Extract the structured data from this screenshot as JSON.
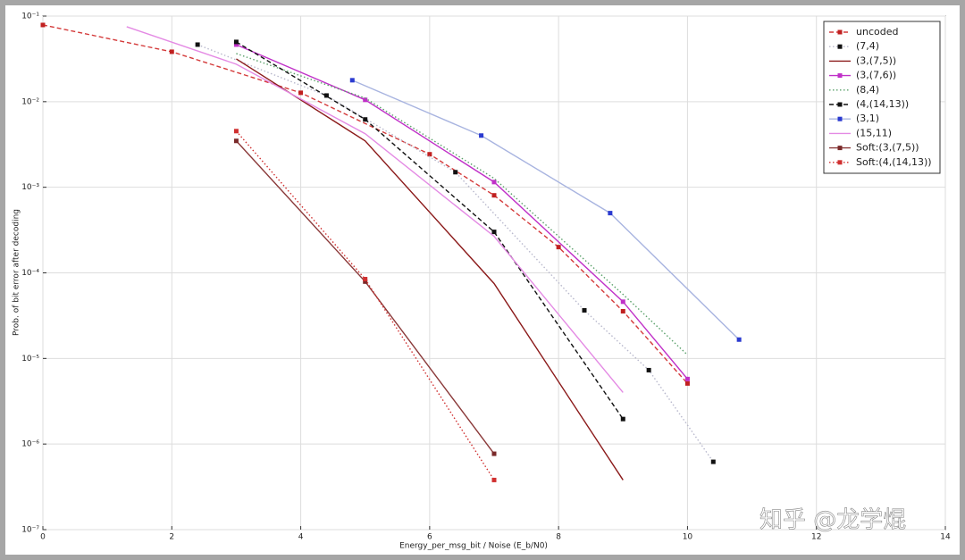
{
  "chart_data": {
    "type": "line",
    "xlabel": "Energy_per_msg_bit / Noise (E_b/N0)",
    "ylabel": "Prob. of bit error after decoding",
    "watermark": "知乎 @龙学焜",
    "xlim": [
      0,
      14
    ],
    "xticks": [
      0,
      2,
      4,
      6,
      8,
      10,
      12,
      14
    ],
    "ylim": [
      1e-07,
      0.1
    ],
    "log_y": true,
    "grid": true,
    "legend": "upper right",
    "yticks": [
      {
        "value": 0.1,
        "label": "10⁻¹"
      },
      {
        "value": 0.01,
        "label": "10⁻²"
      },
      {
        "value": 0.001,
        "label": "10⁻³"
      },
      {
        "value": 0.0001,
        "label": "10⁻⁴"
      },
      {
        "value": 1e-05,
        "label": "10⁻⁵"
      },
      {
        "value": 1e-06,
        "label": "10⁻⁶"
      },
      {
        "value": 1e-07,
        "label": "10⁻⁷"
      }
    ],
    "series": [
      {
        "name": "uncoded",
        "color": "#d43a3a",
        "marker_color": "#c02020",
        "dash": "dashed",
        "marker": true,
        "x": [
          0,
          2,
          4,
          6,
          7,
          8,
          9,
          10
        ],
        "values": [
          0.0787,
          0.0383,
          0.0127,
          0.00243,
          0.000805,
          0.0002,
          3.56e-05,
          5.1e-06
        ]
      },
      {
        "name": "(7,4)",
        "color": "#b8b8cc",
        "marker_color": "#111111",
        "dash": "dotted",
        "marker": true,
        "x": [
          2.4,
          4.4,
          6.4,
          8.4,
          9.4,
          10.4
        ],
        "values": [
          0.0464,
          0.0118,
          0.0015,
          3.65e-05,
          7.3e-06,
          6.2e-07
        ]
      },
      {
        "name": "(3,(7,5))",
        "color": "#8b1a1a",
        "marker_color": "#8b1a1a",
        "dash": "solid",
        "marker": false,
        "x": [
          3,
          5,
          7,
          9
        ],
        "values": [
          0.0316,
          0.00348,
          7.5e-05,
          3.8e-07
        ]
      },
      {
        "name": "(3,(7,6))",
        "color": "#c030c8",
        "marker_color": "#c030c8",
        "dash": "solid",
        "marker": true,
        "x": [
          3,
          5,
          7,
          9,
          10
        ],
        "values": [
          0.0464,
          0.0105,
          0.00115,
          4.6e-05,
          5.75e-06
        ]
      },
      {
        "name": "(8,4)",
        "color": "#5aa06a",
        "marker_color": "#5aa06a",
        "dash": "dotted",
        "marker": false,
        "x": [
          3,
          5,
          7,
          9,
          10
        ],
        "values": [
          0.0365,
          0.011,
          0.00127,
          5.6e-05,
          1.1e-05
        ]
      },
      {
        "name": "(4,(14,13))",
        "color": "#111111",
        "marker_color": "#111111",
        "dash": "dashed",
        "marker": true,
        "x": [
          3,
          5,
          7,
          9
        ],
        "values": [
          0.0499,
          0.0062,
          0.000301,
          1.96e-06
        ]
      },
      {
        "name": "(3,1)",
        "color": "#a8b4e0",
        "marker_color": "#2a3ad0",
        "dash": "solid",
        "marker": true,
        "x": [
          4.8,
          6.8,
          8.8,
          10.8
        ],
        "values": [
          0.0178,
          0.00402,
          0.000499,
          1.66e-05
        ]
      },
      {
        "name": "(15,11)",
        "color": "#e48ae4",
        "marker_color": "#e48ae4",
        "dash": "solid",
        "marker": false,
        "x": [
          1.3,
          3,
          5,
          7,
          9
        ],
        "values": [
          0.075,
          0.0274,
          0.00422,
          0.000267,
          4e-06
        ]
      },
      {
        "name": "Soft:(3,(7,5))",
        "color": "#8b3a3a",
        "marker_color": "#7a2a2a",
        "dash": "solid",
        "marker": true,
        "x": [
          3,
          5,
          7
        ],
        "values": [
          0.00348,
          7.9e-05,
          7.7e-07
        ]
      },
      {
        "name": "Soft:(4,(14,13))",
        "color": "#d03030",
        "marker_color": "#d03030",
        "dash": "dotted",
        "marker": true,
        "x": [
          3,
          5,
          7
        ],
        "values": [
          0.00453,
          8.45e-05,
          3.8e-07
        ]
      }
    ]
  }
}
